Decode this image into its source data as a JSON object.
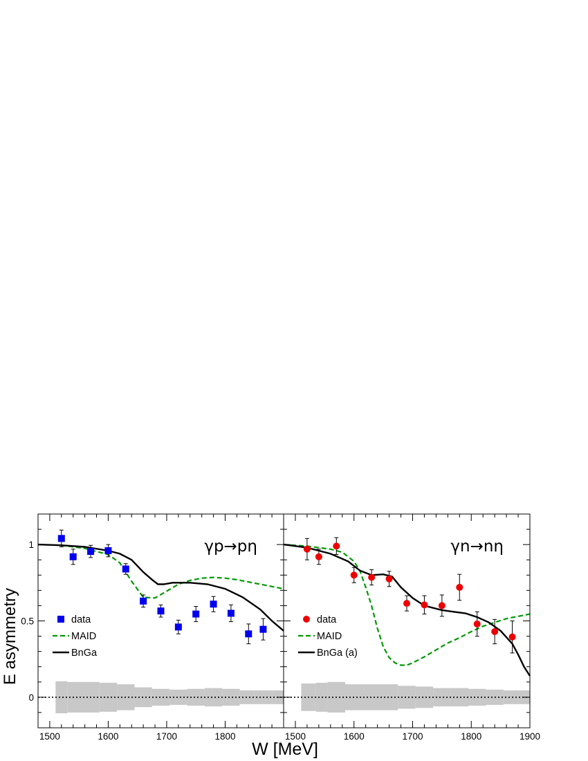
{
  "chart_data": [
    {
      "type": "scatter",
      "panel": "left",
      "reaction": "γp→pη",
      "xlabel": "W [MeV]",
      "ylabel": "E asymmetry",
      "xlim": [
        1480,
        1900
      ],
      "ylim": [
        -0.2,
        1.2
      ],
      "xticks": [
        1500,
        1600,
        1700,
        1800
      ],
      "yticks": [
        0,
        0.5,
        1
      ],
      "ytick_labels": [
        "0",
        "0.5",
        "1"
      ],
      "marker": "square",
      "colors": {
        "data": "#0000ee",
        "maid": "#009900",
        "bnga": "#000000",
        "syst": "#c8c8c8"
      },
      "legend": [
        "data",
        "MAID",
        "BnGa"
      ],
      "legend_placement": "lower-left",
      "data": [
        {
          "x": 1520,
          "y": 1.04,
          "err": 0.055
        },
        {
          "x": 1540,
          "y": 0.92,
          "err": 0.05
        },
        {
          "x": 1570,
          "y": 0.955,
          "err": 0.04
        },
        {
          "x": 1600,
          "y": 0.96,
          "err": 0.04
        },
        {
          "x": 1630,
          "y": 0.84,
          "err": 0.035
        },
        {
          "x": 1660,
          "y": 0.63,
          "err": 0.04
        },
        {
          "x": 1690,
          "y": 0.565,
          "err": 0.04
        },
        {
          "x": 1720,
          "y": 0.46,
          "err": 0.045
        },
        {
          "x": 1750,
          "y": 0.545,
          "err": 0.05
        },
        {
          "x": 1780,
          "y": 0.61,
          "err": 0.05
        },
        {
          "x": 1810,
          "y": 0.55,
          "err": 0.055
        },
        {
          "x": 1840,
          "y": 0.415,
          "err": 0.065
        },
        {
          "x": 1865,
          "y": 0.445,
          "err": 0.07
        }
      ],
      "maid": {
        "x": [
          1480,
          1520,
          1560,
          1600,
          1620,
          1640,
          1660,
          1680,
          1700,
          1720,
          1740,
          1760,
          1780,
          1800,
          1820,
          1840,
          1860,
          1880,
          1900
        ],
        "y": [
          1.0,
          0.995,
          0.975,
          0.935,
          0.88,
          0.76,
          0.655,
          0.65,
          0.695,
          0.74,
          0.765,
          0.78,
          0.785,
          0.78,
          0.77,
          0.755,
          0.74,
          0.725,
          0.71
        ]
      },
      "bnga": {
        "x": [
          1480,
          1520,
          1560,
          1600,
          1620,
          1640,
          1660,
          1675,
          1685,
          1695,
          1710,
          1740,
          1770,
          1800,
          1830,
          1860,
          1880,
          1900
        ],
        "y": [
          1.0,
          0.995,
          0.985,
          0.96,
          0.94,
          0.9,
          0.82,
          0.77,
          0.74,
          0.74,
          0.75,
          0.75,
          0.74,
          0.71,
          0.655,
          0.575,
          0.5,
          0.435
        ]
      },
      "syst": [
        {
          "x0": 1510,
          "x1": 1530,
          "h": 0.105
        },
        {
          "x0": 1530,
          "x1": 1585,
          "h": 0.1
        },
        {
          "x0": 1585,
          "x1": 1615,
          "h": 0.095
        },
        {
          "x0": 1615,
          "x1": 1645,
          "h": 0.085
        },
        {
          "x0": 1645,
          "x1": 1675,
          "h": 0.065
        },
        {
          "x0": 1675,
          "x1": 1705,
          "h": 0.055
        },
        {
          "x0": 1705,
          "x1": 1735,
          "h": 0.05
        },
        {
          "x0": 1735,
          "x1": 1765,
          "h": 0.055
        },
        {
          "x0": 1765,
          "x1": 1795,
          "h": 0.06
        },
        {
          "x0": 1795,
          "x1": 1825,
          "h": 0.055
        },
        {
          "x0": 1825,
          "x1": 1850,
          "h": 0.045
        },
        {
          "x0": 1850,
          "x1": 1880,
          "h": 0.045
        },
        {
          "x0": 1880,
          "x1": 1900,
          "h": 0.045
        }
      ]
    },
    {
      "type": "scatter",
      "panel": "right",
      "reaction": "γn→nη",
      "xlabel": "W [MeV]",
      "ylabel": "E asymmetry",
      "xlim": [
        1480,
        1900
      ],
      "ylim": [
        -0.2,
        1.2
      ],
      "xticks": [
        1500,
        1600,
        1700,
        1800,
        1900
      ],
      "marker": "circle",
      "colors": {
        "data": "#ee0000",
        "maid": "#009900",
        "bnga": "#000000",
        "syst": "#c8c8c8"
      },
      "legend": [
        "data",
        "MAID",
        "BnGa (a)"
      ],
      "legend_placement": "lower-left",
      "data": [
        {
          "x": 1520,
          "y": 0.97,
          "err": 0.07
        },
        {
          "x": 1540,
          "y": 0.92,
          "err": 0.05
        },
        {
          "x": 1570,
          "y": 0.99,
          "err": 0.055
        },
        {
          "x": 1600,
          "y": 0.8,
          "err": 0.05
        },
        {
          "x": 1630,
          "y": 0.785,
          "err": 0.05
        },
        {
          "x": 1660,
          "y": 0.775,
          "err": 0.05
        },
        {
          "x": 1690,
          "y": 0.615,
          "err": 0.05
        },
        {
          "x": 1720,
          "y": 0.605,
          "err": 0.06
        },
        {
          "x": 1750,
          "y": 0.6,
          "err": 0.07
        },
        {
          "x": 1780,
          "y": 0.72,
          "err": 0.085
        },
        {
          "x": 1810,
          "y": 0.48,
          "err": 0.08
        },
        {
          "x": 1840,
          "y": 0.43,
          "err": 0.08
        },
        {
          "x": 1870,
          "y": 0.395,
          "err": 0.105
        }
      ],
      "maid": {
        "x": [
          1480,
          1520,
          1560,
          1580,
          1600,
          1610,
          1620,
          1630,
          1640,
          1650,
          1660,
          1670,
          1680,
          1690,
          1700,
          1720,
          1740,
          1760,
          1780,
          1800,
          1820,
          1840,
          1860,
          1880,
          1900
        ],
        "y": [
          1.0,
          0.99,
          0.97,
          0.95,
          0.89,
          0.83,
          0.72,
          0.6,
          0.45,
          0.33,
          0.26,
          0.225,
          0.21,
          0.21,
          0.225,
          0.265,
          0.31,
          0.355,
          0.39,
          0.43,
          0.465,
          0.49,
          0.515,
          0.53,
          0.545
        ]
      },
      "bnga": {
        "x": [
          1480,
          1520,
          1560,
          1590,
          1610,
          1630,
          1650,
          1665,
          1680,
          1700,
          1720,
          1750,
          1770,
          1790,
          1810,
          1830,
          1850,
          1870,
          1880,
          1890,
          1900
        ],
        "y": [
          1.0,
          0.98,
          0.94,
          0.89,
          0.83,
          0.8,
          0.805,
          0.79,
          0.72,
          0.65,
          0.6,
          0.57,
          0.56,
          0.55,
          0.525,
          0.49,
          0.435,
          0.35,
          0.28,
          0.2,
          0.14
        ]
      },
      "syst": [
        {
          "x0": 1510,
          "x1": 1535,
          "h": 0.09
        },
        {
          "x0": 1535,
          "x1": 1555,
          "h": 0.095
        },
        {
          "x0": 1555,
          "x1": 1585,
          "h": 0.1
        },
        {
          "x0": 1585,
          "x1": 1675,
          "h": 0.085
        },
        {
          "x0": 1675,
          "x1": 1705,
          "h": 0.075
        },
        {
          "x0": 1705,
          "x1": 1735,
          "h": 0.07
        },
        {
          "x0": 1735,
          "x1": 1765,
          "h": 0.06
        },
        {
          "x0": 1765,
          "x1": 1795,
          "h": 0.06
        },
        {
          "x0": 1795,
          "x1": 1825,
          "h": 0.055
        },
        {
          "x0": 1825,
          "x1": 1855,
          "h": 0.05
        },
        {
          "x0": 1855,
          "x1": 1880,
          "h": 0.045
        },
        {
          "x0": 1880,
          "x1": 1900,
          "h": 0.045
        }
      ]
    }
  ]
}
